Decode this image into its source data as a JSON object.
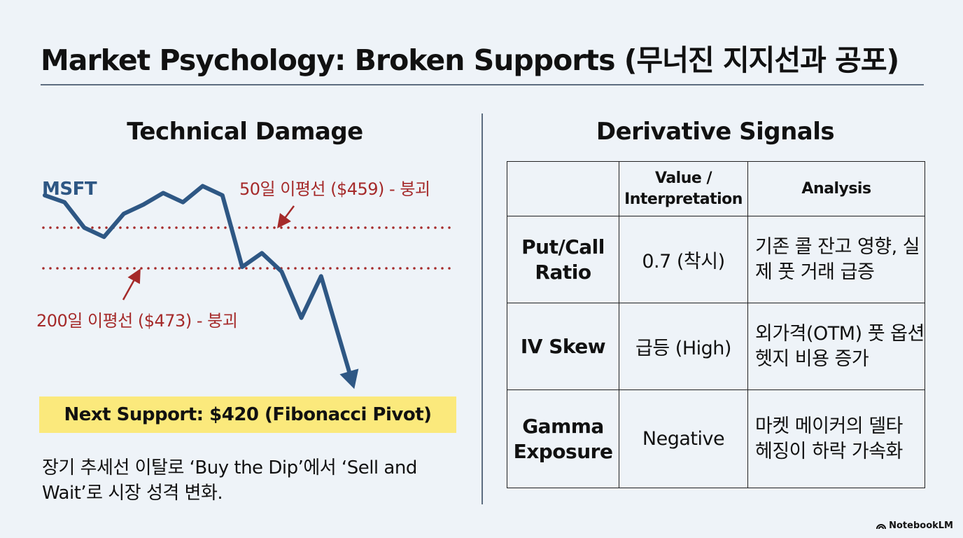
{
  "title": "Market Psychology: Broken Supports (무너진 지지선과 공포)",
  "technical": {
    "heading": "Technical Damage",
    "support_label": "Next Support: $420 (Fibonacci Pivot)",
    "summary": "장기 추세선 이탈로 ‘Buy the Dip’에서 ‘Sell and Wait’로 시장 성격 변화."
  },
  "chart_data": {
    "type": "line",
    "series": [
      {
        "name": "MSFT",
        "values": [
          465,
          462,
          451,
          447,
          457,
          461,
          466,
          462,
          469,
          465,
          434,
          440,
          432,
          412,
          430,
          401
        ]
      }
    ],
    "x": [
      0,
      1,
      2,
      3,
      4,
      5,
      6,
      7,
      8,
      9,
      10,
      11,
      12,
      13,
      14,
      15
    ],
    "reference_lines": [
      {
        "label": "50일 이평선 ($459) - 붕괴",
        "value": 459,
        "color": "#a52a2a"
      },
      {
        "label": "200일 이평선 ($473) - 붕괴",
        "value": 473,
        "color": "#a52a2a"
      }
    ],
    "line_color": "#2e5784"
  },
  "derivative": {
    "heading": "Derivative Signals",
    "columns": [
      "",
      "Value / Interpretation",
      "Analysis"
    ],
    "rows": [
      {
        "metric": "Put/Call Ratio",
        "value": "0.7 (착시)",
        "analysis": "기존 콜 잔고 영향, 실제 풋 거래 급증"
      },
      {
        "metric": "IV Skew",
        "value": "급등 (High)",
        "analysis": "외가격(OTM) 풋 옵션 헷지 비용 증가"
      },
      {
        "metric": "Gamma Exposure",
        "value": "Negative",
        "analysis": "마켓 메이커의 델타 헤징이 하락 가속화"
      }
    ]
  },
  "brand": "NotebookLM"
}
